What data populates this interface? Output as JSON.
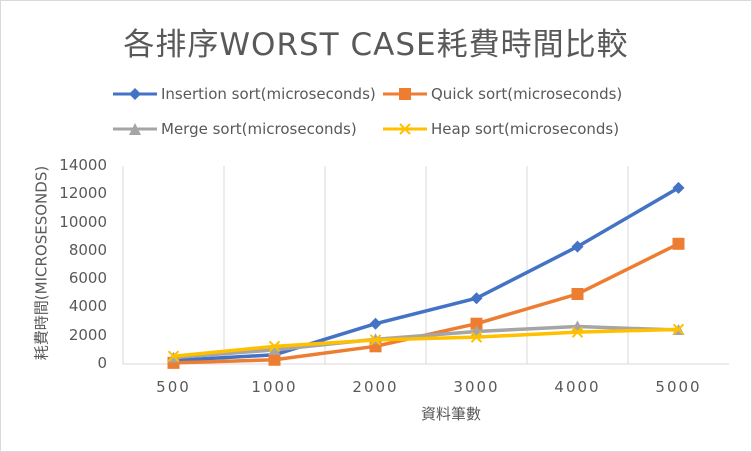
{
  "chart_data": {
    "type": "line",
    "title": "各排序WORST CASE耗費時間比較",
    "xlabel": "資料筆數",
    "ylabel": "耗費時間(MICROSESONDS)",
    "categories": [
      "500",
      "1000",
      "2000",
      "3000",
      "4000",
      "5000"
    ],
    "yticks": [
      "0",
      "2000",
      "4000",
      "6000",
      "8000",
      "10000",
      "12000",
      "14000"
    ],
    "ylim": [
      0,
      14000
    ],
    "legend_position": "top",
    "gridlines": "vertical",
    "series": [
      {
        "name": "Insertion sort(microseconds)",
        "color": "#4472c4",
        "marker": "diamond",
        "values": [
          250,
          650,
          2850,
          4650,
          8300,
          12450
        ]
      },
      {
        "name": "Quick sort(microseconds)",
        "color": "#ed7d31",
        "marker": "square",
        "values": [
          80,
          300,
          1250,
          2850,
          4950,
          8500
        ]
      },
      {
        "name": "Merge sort(microseconds)",
        "color": "#a5a5a5",
        "marker": "triangle",
        "values": [
          450,
          1000,
          1750,
          2300,
          2650,
          2400
        ]
      },
      {
        "name": "Heap sort(microseconds)",
        "color": "#ffc000",
        "marker": "x",
        "values": [
          550,
          1250,
          1700,
          1900,
          2250,
          2450
        ]
      }
    ]
  }
}
